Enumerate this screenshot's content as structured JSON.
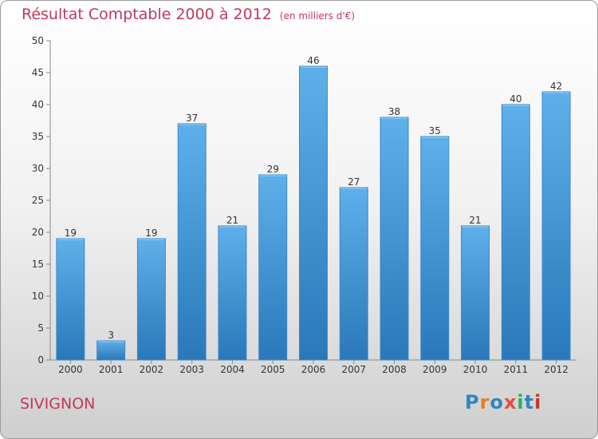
{
  "colors": {
    "title": "#c0395a",
    "bar_top": "#5eb0ea",
    "bar_bottom": "#2a78b8"
  },
  "chart_data": {
    "type": "bar",
    "title": "Résultat Comptable 2000 à 2012",
    "subtitle": "(en milliers d'€)",
    "categories": [
      "2000",
      "2001",
      "2002",
      "2003",
      "2004",
      "2005",
      "2006",
      "2007",
      "2008",
      "2009",
      "2010",
      "2011",
      "2012"
    ],
    "values": [
      19,
      3,
      19,
      37,
      21,
      29,
      46,
      27,
      38,
      35,
      21,
      40,
      42
    ],
    "xlabel": "",
    "ylabel": "",
    "ylim": [
      0,
      50
    ],
    "yticks": [
      0,
      5,
      10,
      15,
      20,
      25,
      30,
      35,
      40,
      45,
      50
    ],
    "grid": false,
    "data_labels": true
  },
  "footer": {
    "commune": "SIVIGNON",
    "logo": "Proxiti"
  }
}
